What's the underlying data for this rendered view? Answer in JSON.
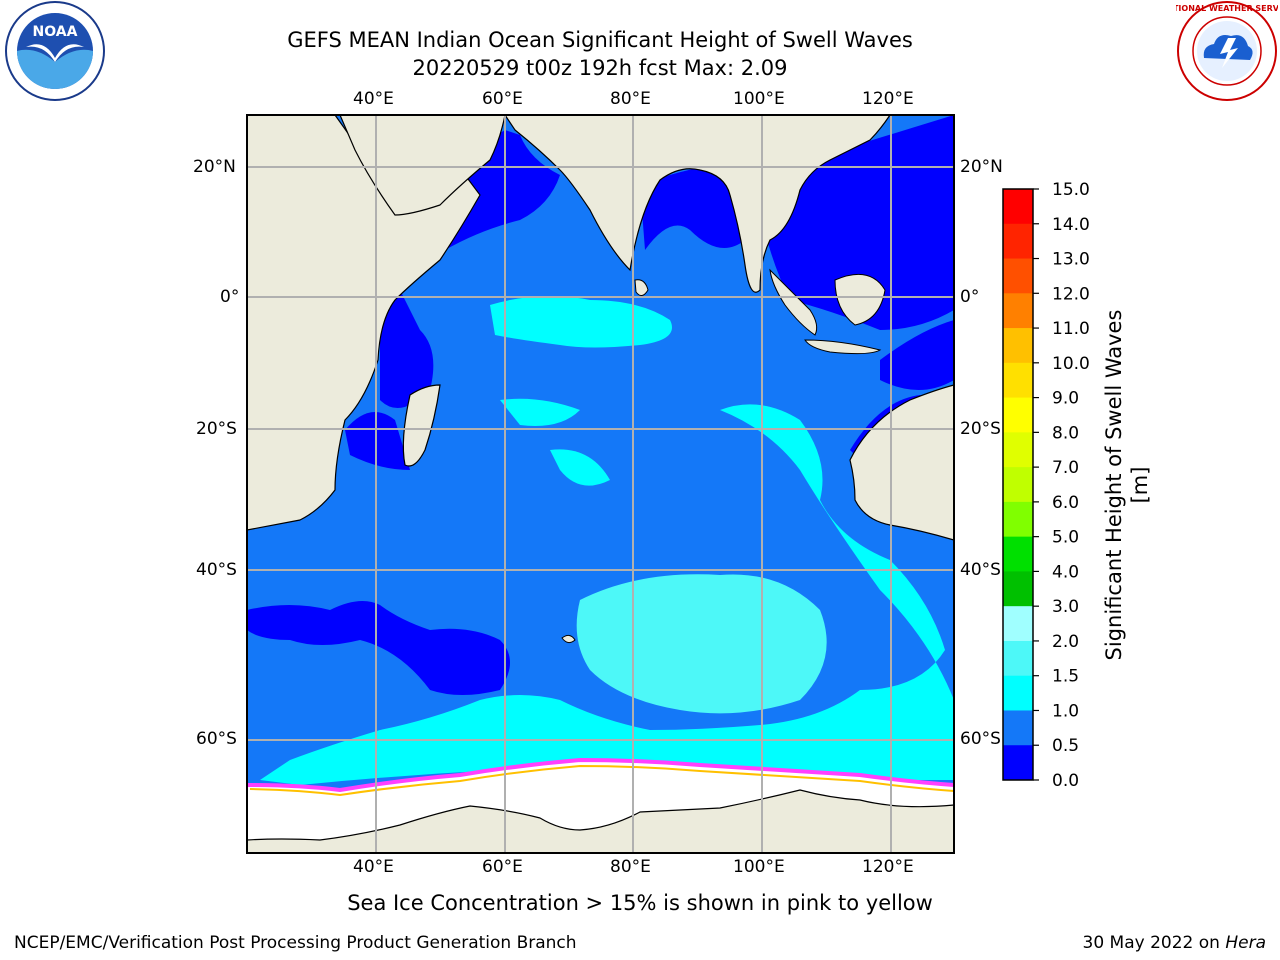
{
  "title": {
    "line1": "GEFS MEAN Indian Ocean Significant Height of Swell Waves",
    "line2": "20220529 t00z 192h fcst   Max: 2.09"
  },
  "logos": {
    "left": {
      "icon": "noaa-logo",
      "text": "NOAA"
    },
    "right": {
      "icon": "national-weather-service-logo",
      "text": "NATIONAL WEATHER SERVICE"
    }
  },
  "map": {
    "lon_labels_top": [
      "40°E",
      "60°E",
      "80°E",
      "100°E",
      "120°E"
    ],
    "lon_labels_bottom": [
      "40°E",
      "60°E",
      "80°E",
      "100°E",
      "120°E"
    ],
    "lat_labels_left": [
      "20°N",
      "0°",
      "20°S",
      "40°S",
      "60°S"
    ],
    "lat_labels_right": [
      "20°N",
      "0°",
      "20°S",
      "40°S",
      "60°S"
    ],
    "colors": {
      "land": "#ecebdc",
      "ocean_0_0.5": "#0000ff",
      "ocean_0.5_1": "#1478f8",
      "ocean_1_1.5": "#00ffff",
      "ocean_1.5_2": "#4df8f8",
      "ice": "#ffffff",
      "ice_edge": "#ff40ff",
      "grid": "#b0b0b0"
    }
  },
  "colorbar": {
    "label": "Significant Height of Swell Waves [m]",
    "ticks": [
      "15.0",
      "14.0",
      "13.0",
      "12.0",
      "11.0",
      "10.0",
      "9.0",
      "8.0",
      "7.0",
      "6.0",
      "5.0",
      "4.0",
      "3.0",
      "2.0",
      "1.5",
      "1.0",
      "0.5",
      "0.0"
    ],
    "bands": [
      "#ff0000",
      "#ff2400",
      "#ff5000",
      "#ff8000",
      "#ffa000",
      "#ffc000",
      "#ffe000",
      "#ffff00",
      "#e0ff00",
      "#c0ff00",
      "#80ff00",
      "#00e000",
      "#00c000",
      "#50ff80",
      "#a0ffff",
      "#4df8f8",
      "#00ffff",
      "#1478f8",
      "#0000ff"
    ]
  },
  "caption": "Sea Ice Concentration > 15% is shown in pink to yellow",
  "footer": {
    "left": "NCEP/EMC/Verification Post Processing Product Generation Branch",
    "right_prefix": "30 May 2022 on ",
    "right_italic": "Hera"
  }
}
